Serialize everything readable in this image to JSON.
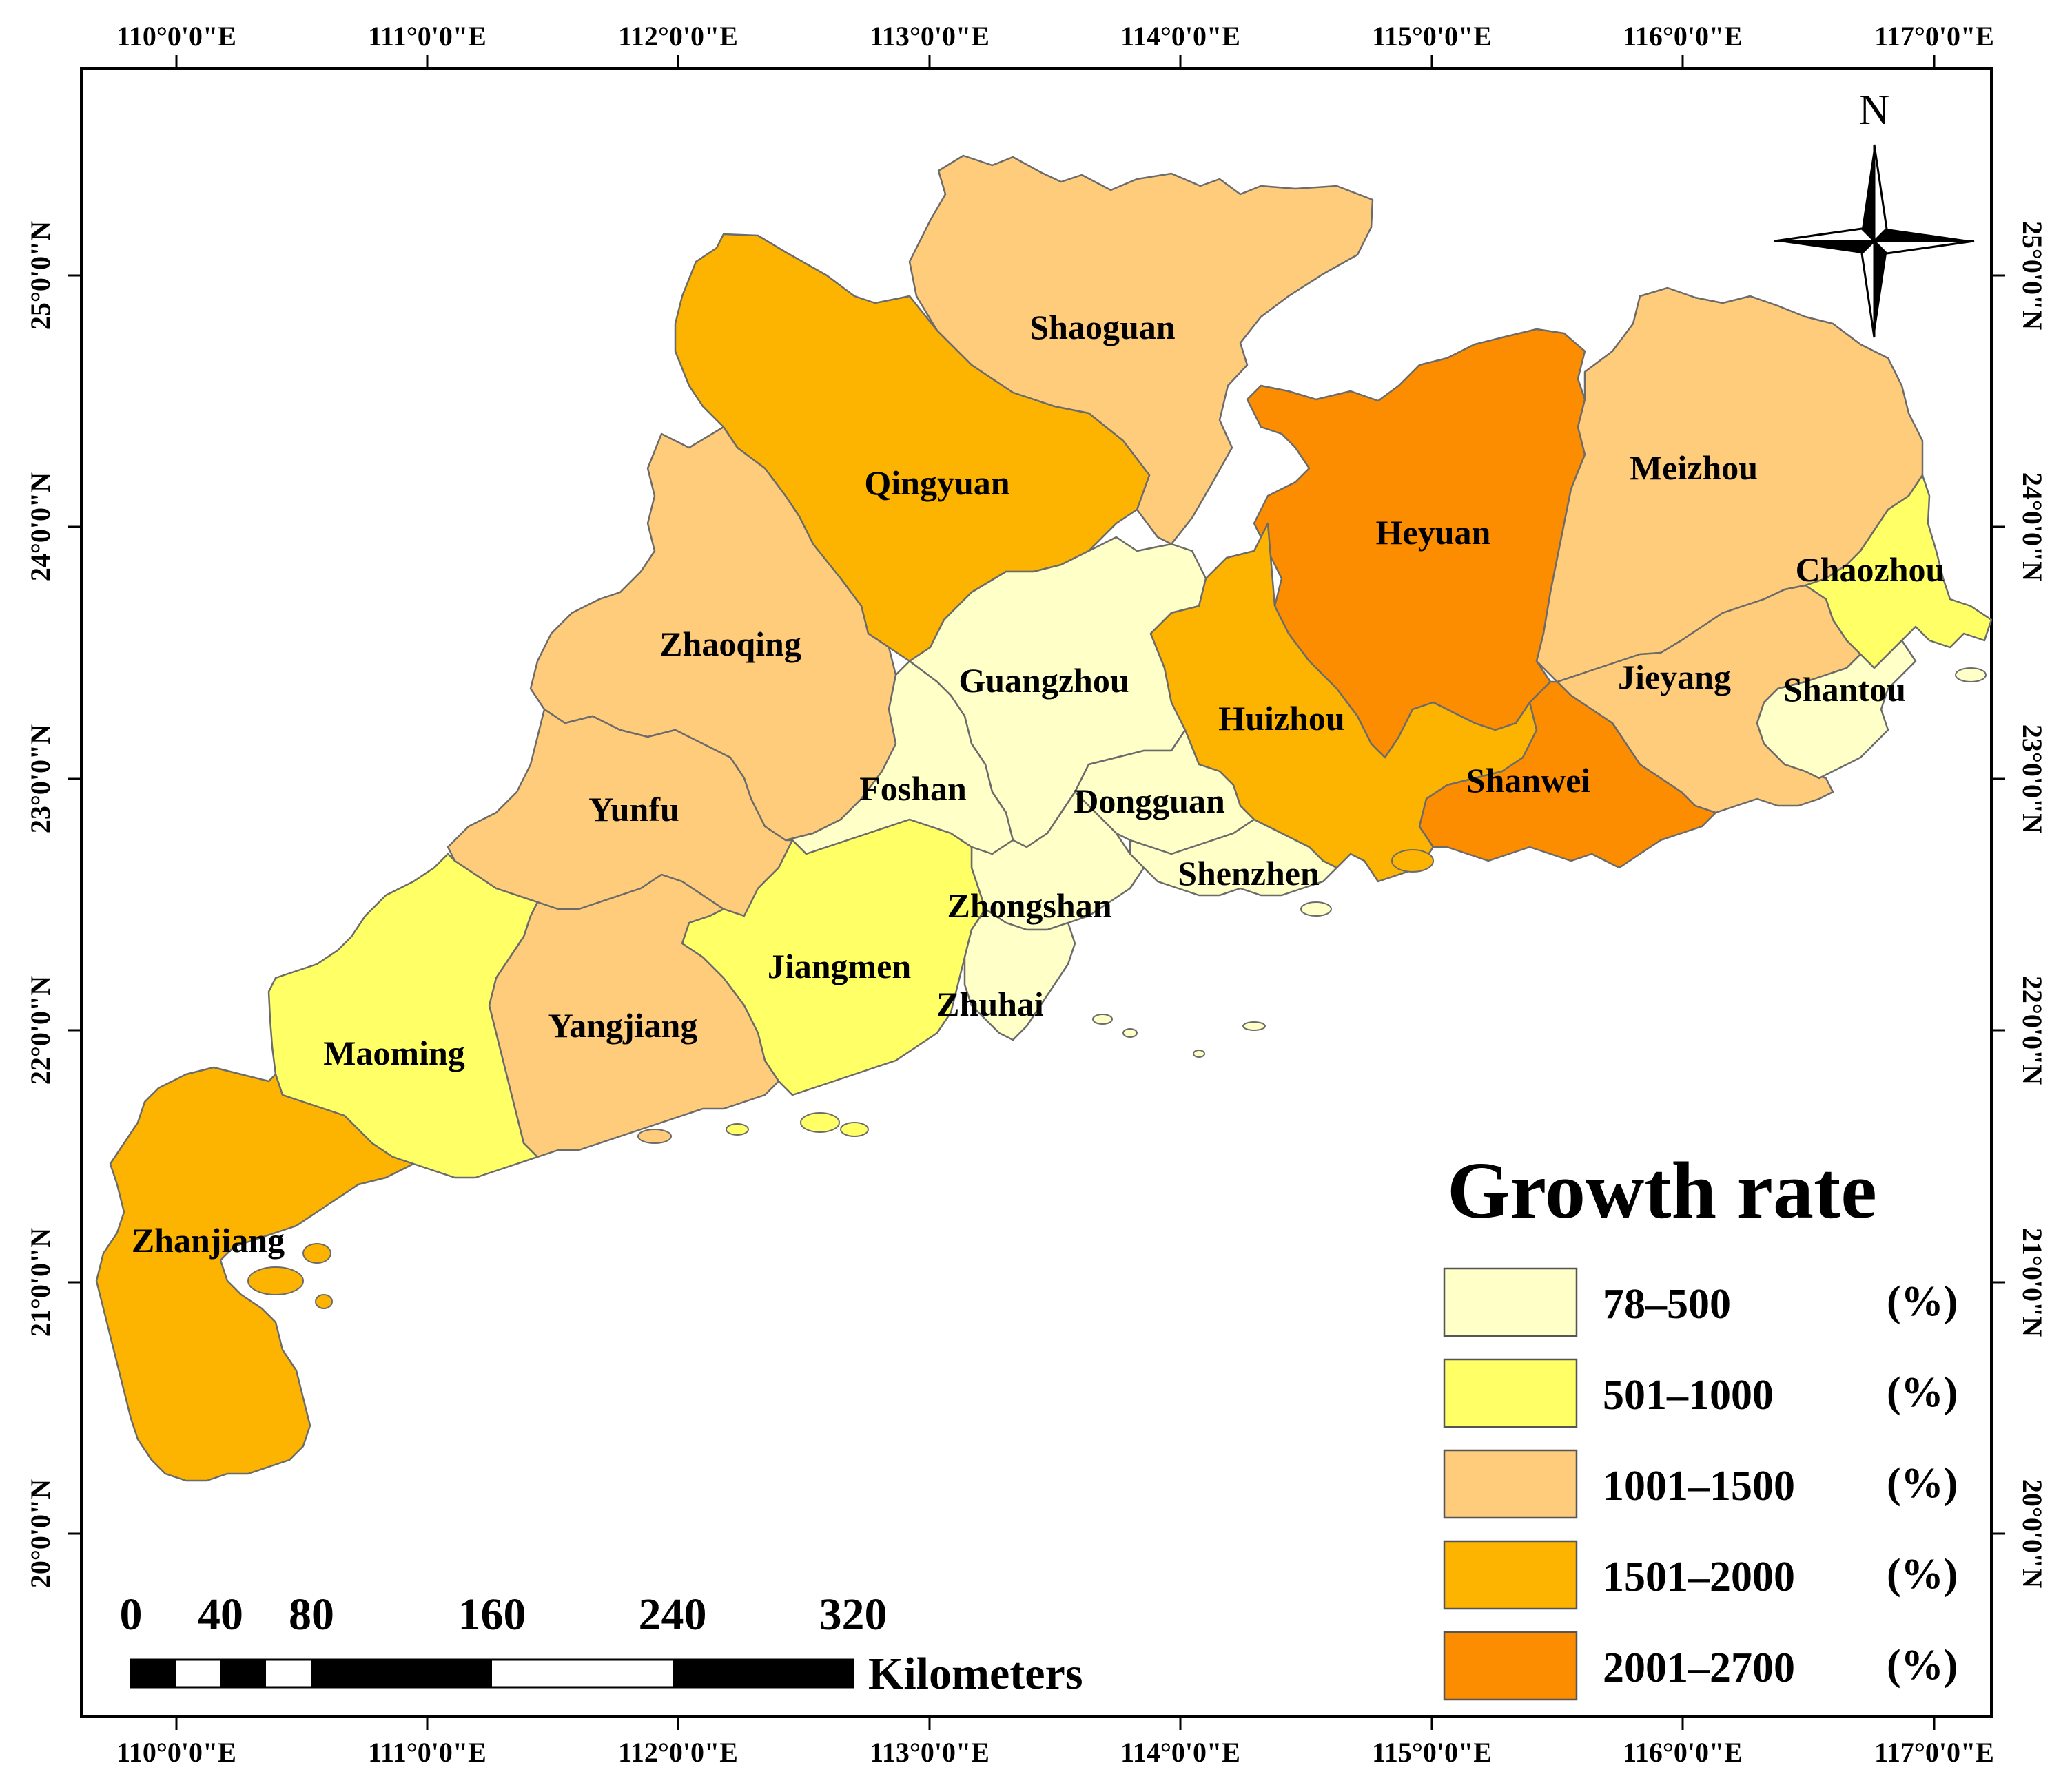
{
  "map": {
    "lon_ticks": [
      "110°0'0\"E",
      "111°0'0\"E",
      "112°0'0\"E",
      "113°0'0\"E",
      "114°0'0\"E",
      "115°0'0\"E",
      "116°0'0\"E",
      "117°0'0\"E"
    ],
    "lat_ticks": [
      "25°0'0\"N",
      "24°0'0\"N",
      "23°0'0\"N",
      "22°0'0\"N",
      "21°0'0\"N",
      "20°0'0\"N"
    ],
    "north_label": "N",
    "regions": [
      {
        "name": "Shaoguan",
        "class": 3
      },
      {
        "name": "Qingyuan",
        "class": 4
      },
      {
        "name": "Heyuan",
        "class": 5
      },
      {
        "name": "Meizhou",
        "class": 3
      },
      {
        "name": "Chaozhou",
        "class": 2
      },
      {
        "name": "Zhaoqing",
        "class": 3
      },
      {
        "name": "Guangzhou",
        "class": 1
      },
      {
        "name": "Huizhou",
        "class": 4
      },
      {
        "name": "Jieyang",
        "class": 3
      },
      {
        "name": "Shantou",
        "class": 1
      },
      {
        "name": "Foshan",
        "class": 1
      },
      {
        "name": "Dongguan",
        "class": 1
      },
      {
        "name": "Shanwei",
        "class": 5
      },
      {
        "name": "Yunfu",
        "class": 3
      },
      {
        "name": "Shenzhen",
        "class": 1
      },
      {
        "name": "Zhongshan",
        "class": 1
      },
      {
        "name": "Jiangmen",
        "class": 2
      },
      {
        "name": "Zhuhai",
        "class": 1
      },
      {
        "name": "Yangjiang",
        "class": 3
      },
      {
        "name": "Maoming",
        "class": 2
      },
      {
        "name": "Zhanjiang",
        "class": 4
      }
    ],
    "legend": {
      "title": "Growth rate",
      "unit": "(%)",
      "classes": [
        {
          "id": 1,
          "label": "78–500",
          "color": "#FFFFC8"
        },
        {
          "id": 2,
          "label": "501–1000",
          "color": "#FFFF66"
        },
        {
          "id": 3,
          "label": "1001–1500",
          "color": "#FECC7A"
        },
        {
          "id": 4,
          "label": "1501–2000",
          "color": "#FCB400"
        },
        {
          "id": 5,
          "label": "2001–2700",
          "color": "#FC8C00"
        }
      ]
    },
    "scale_bar": {
      "ticks": [
        "0",
        "40",
        "80",
        "160",
        "240",
        "320"
      ],
      "unit": "Kilometers"
    }
  }
}
